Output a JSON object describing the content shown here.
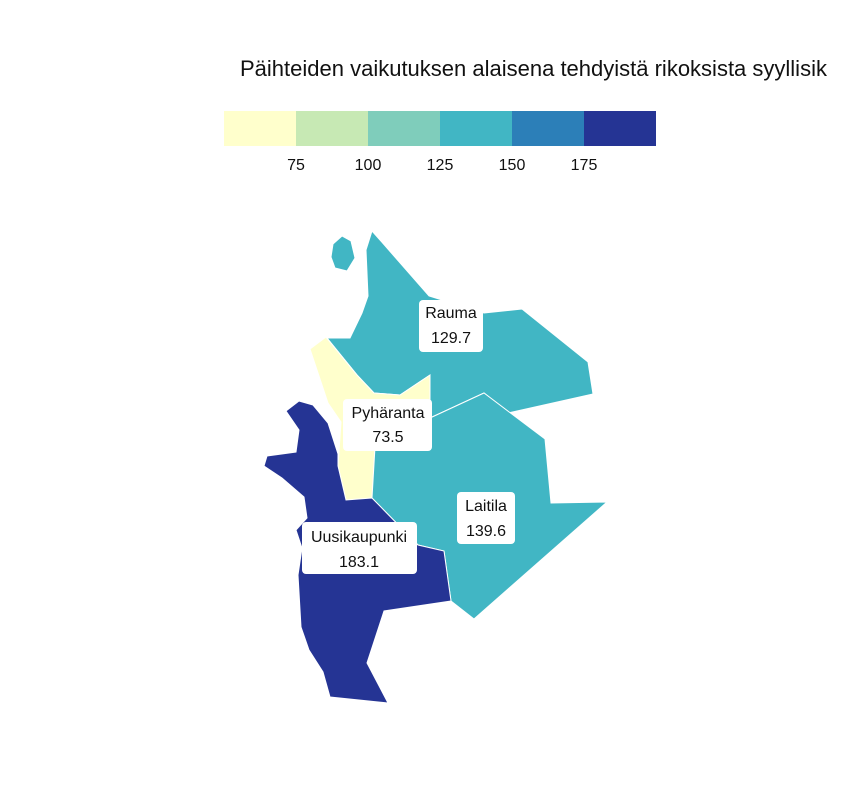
{
  "title": "Päihteiden vaikutuksen alaisena tehdyistä rikoksista syyllisik",
  "legend": {
    "colors": [
      "#ffffcc",
      "#c7e9b4",
      "#7fcdbb",
      "#41b6c4",
      "#2c7fb8",
      "#253494"
    ],
    "ticks": [
      "75",
      "100",
      "125",
      "150",
      "175"
    ]
  },
  "chart_data": {
    "type": "choropleth",
    "regions": [
      {
        "name": "Rauma",
        "value": 129.7,
        "value_label": "129.7",
        "color": "#41b6c4"
      },
      {
        "name": "Pyhäranta",
        "value": 73.5,
        "value_label": "73.5",
        "color": "#ffffcc"
      },
      {
        "name": "Laitila",
        "value": 139.6,
        "value_label": "139.6",
        "color": "#41b6c4"
      },
      {
        "name": "Uusikaupunki",
        "value": 183.1,
        "value_label": "183.1",
        "color": "#253494"
      }
    ]
  }
}
